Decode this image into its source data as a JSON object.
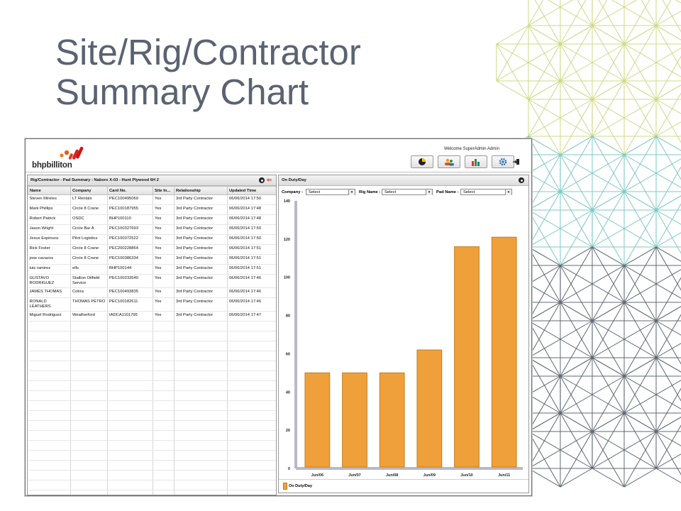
{
  "slide": {
    "title_line1": "Site/Rig/Contractor",
    "title_line2": "Summary Chart"
  },
  "colors": {
    "title": "#5a6372",
    "bar": "#f0a03a",
    "bar_edge": "#c77d1c",
    "hex_green": "#cdd98a",
    "hex_teal": "#7ec9c4",
    "hex_gray": "#5f6872"
  },
  "app": {
    "logo_text": "bhpbilliton",
    "welcome": "Welcome",
    "user": "SuperAdmin Admin",
    "toolbar_icons": [
      "pie-chart-icon",
      "people-icon",
      "bar-chart-icon",
      "gear-icon"
    ],
    "left_panel": {
      "title": "Rig/Contractor - Pad Summary : Nabors X-03 - Hunt Plywood 6H 2",
      "columns": [
        "Name",
        "Company",
        "Card No.",
        "Site In...",
        "Relationship",
        "Updated Time"
      ],
      "rows": [
        [
          "Steven Mireles",
          "LT Rentals",
          "PEC100495069",
          "Yes",
          "3rd Party Contractor",
          "06/06/2014 17:50"
        ],
        [
          "Mark Phillips",
          "Circle 8 Crane",
          "PEC100187955",
          "Yes",
          "3rd Party Contractor",
          "06/06/2014 17:48"
        ],
        [
          "Robert Patrick",
          "OSDC",
          "BHP100110",
          "Yes",
          "3rd Party Contractor",
          "06/06/2014 17:48"
        ],
        [
          "Jason Wright",
          "Circle Bar A",
          "PEC100327693",
          "Yes",
          "3rd Party Contractor",
          "06/06/2014 17:50"
        ],
        [
          "Jesus Espinoza",
          "Pilot Logistics",
          "PEC100372522",
          "Yes",
          "3rd Party Contractor",
          "06/06/2014 17:50"
        ],
        [
          "Rick Foster",
          "Circle 8 Crane",
          "PEC200228864",
          "Yes",
          "3rd Party Contractor",
          "06/06/2014 17:51"
        ],
        [
          "jose cavazos",
          "Circle 8 Crane",
          "PEC100386334",
          "Yes",
          "3rd Party Contractor",
          "06/06/2014 17:51"
        ],
        [
          "luis ramirez",
          "elfs",
          "BHP100144",
          "Yes",
          "3rd Party Contractor",
          "06/06/2014 17:51"
        ],
        [
          "GUSTAVO RODRIGUEZ",
          "Stallion Oilfield Service",
          "PEC100233540",
          "Yes",
          "3rd Party Contractor",
          "06/06/2014 17:46"
        ],
        [
          "JAMES THOMAS",
          "Cobra",
          "PEC100493835",
          "Yes",
          "3rd Party Contractor",
          "06/06/2014 17:46"
        ],
        [
          "RONALD LEATHERS",
          "THOMAS PETRO",
          "PEC100182611",
          "Yes",
          "3rd Party Contractor",
          "06/06/2014 17:46"
        ],
        [
          "Miguel Rodriguez",
          "Weatherford",
          "IADCA1101795",
          "Yes",
          "3rd Party Contractor",
          "06/06/2014 17:47"
        ]
      ]
    },
    "right_panel": {
      "title": "On Duty/Day",
      "filters": [
        {
          "label": "Company :",
          "value": "Select"
        },
        {
          "label": "Rig Name :",
          "value": "Select"
        },
        {
          "label": "Pad Name :",
          "value": "Select"
        }
      ]
    }
  },
  "chart_data": {
    "type": "bar",
    "categories": [
      "Jun/06",
      "Jun/07",
      "Jun/08",
      "Jun/09",
      "Jun/10",
      "Jun/11"
    ],
    "series": [
      {
        "name": "On Duty/Day",
        "values": [
          50,
          50,
          50,
          62,
          116,
          121
        ]
      }
    ],
    "ylim": [
      0,
      140
    ],
    "yticks": [
      0,
      20,
      40,
      60,
      80,
      100,
      120,
      140
    ],
    "grid": false,
    "legend": "bottom-left"
  }
}
